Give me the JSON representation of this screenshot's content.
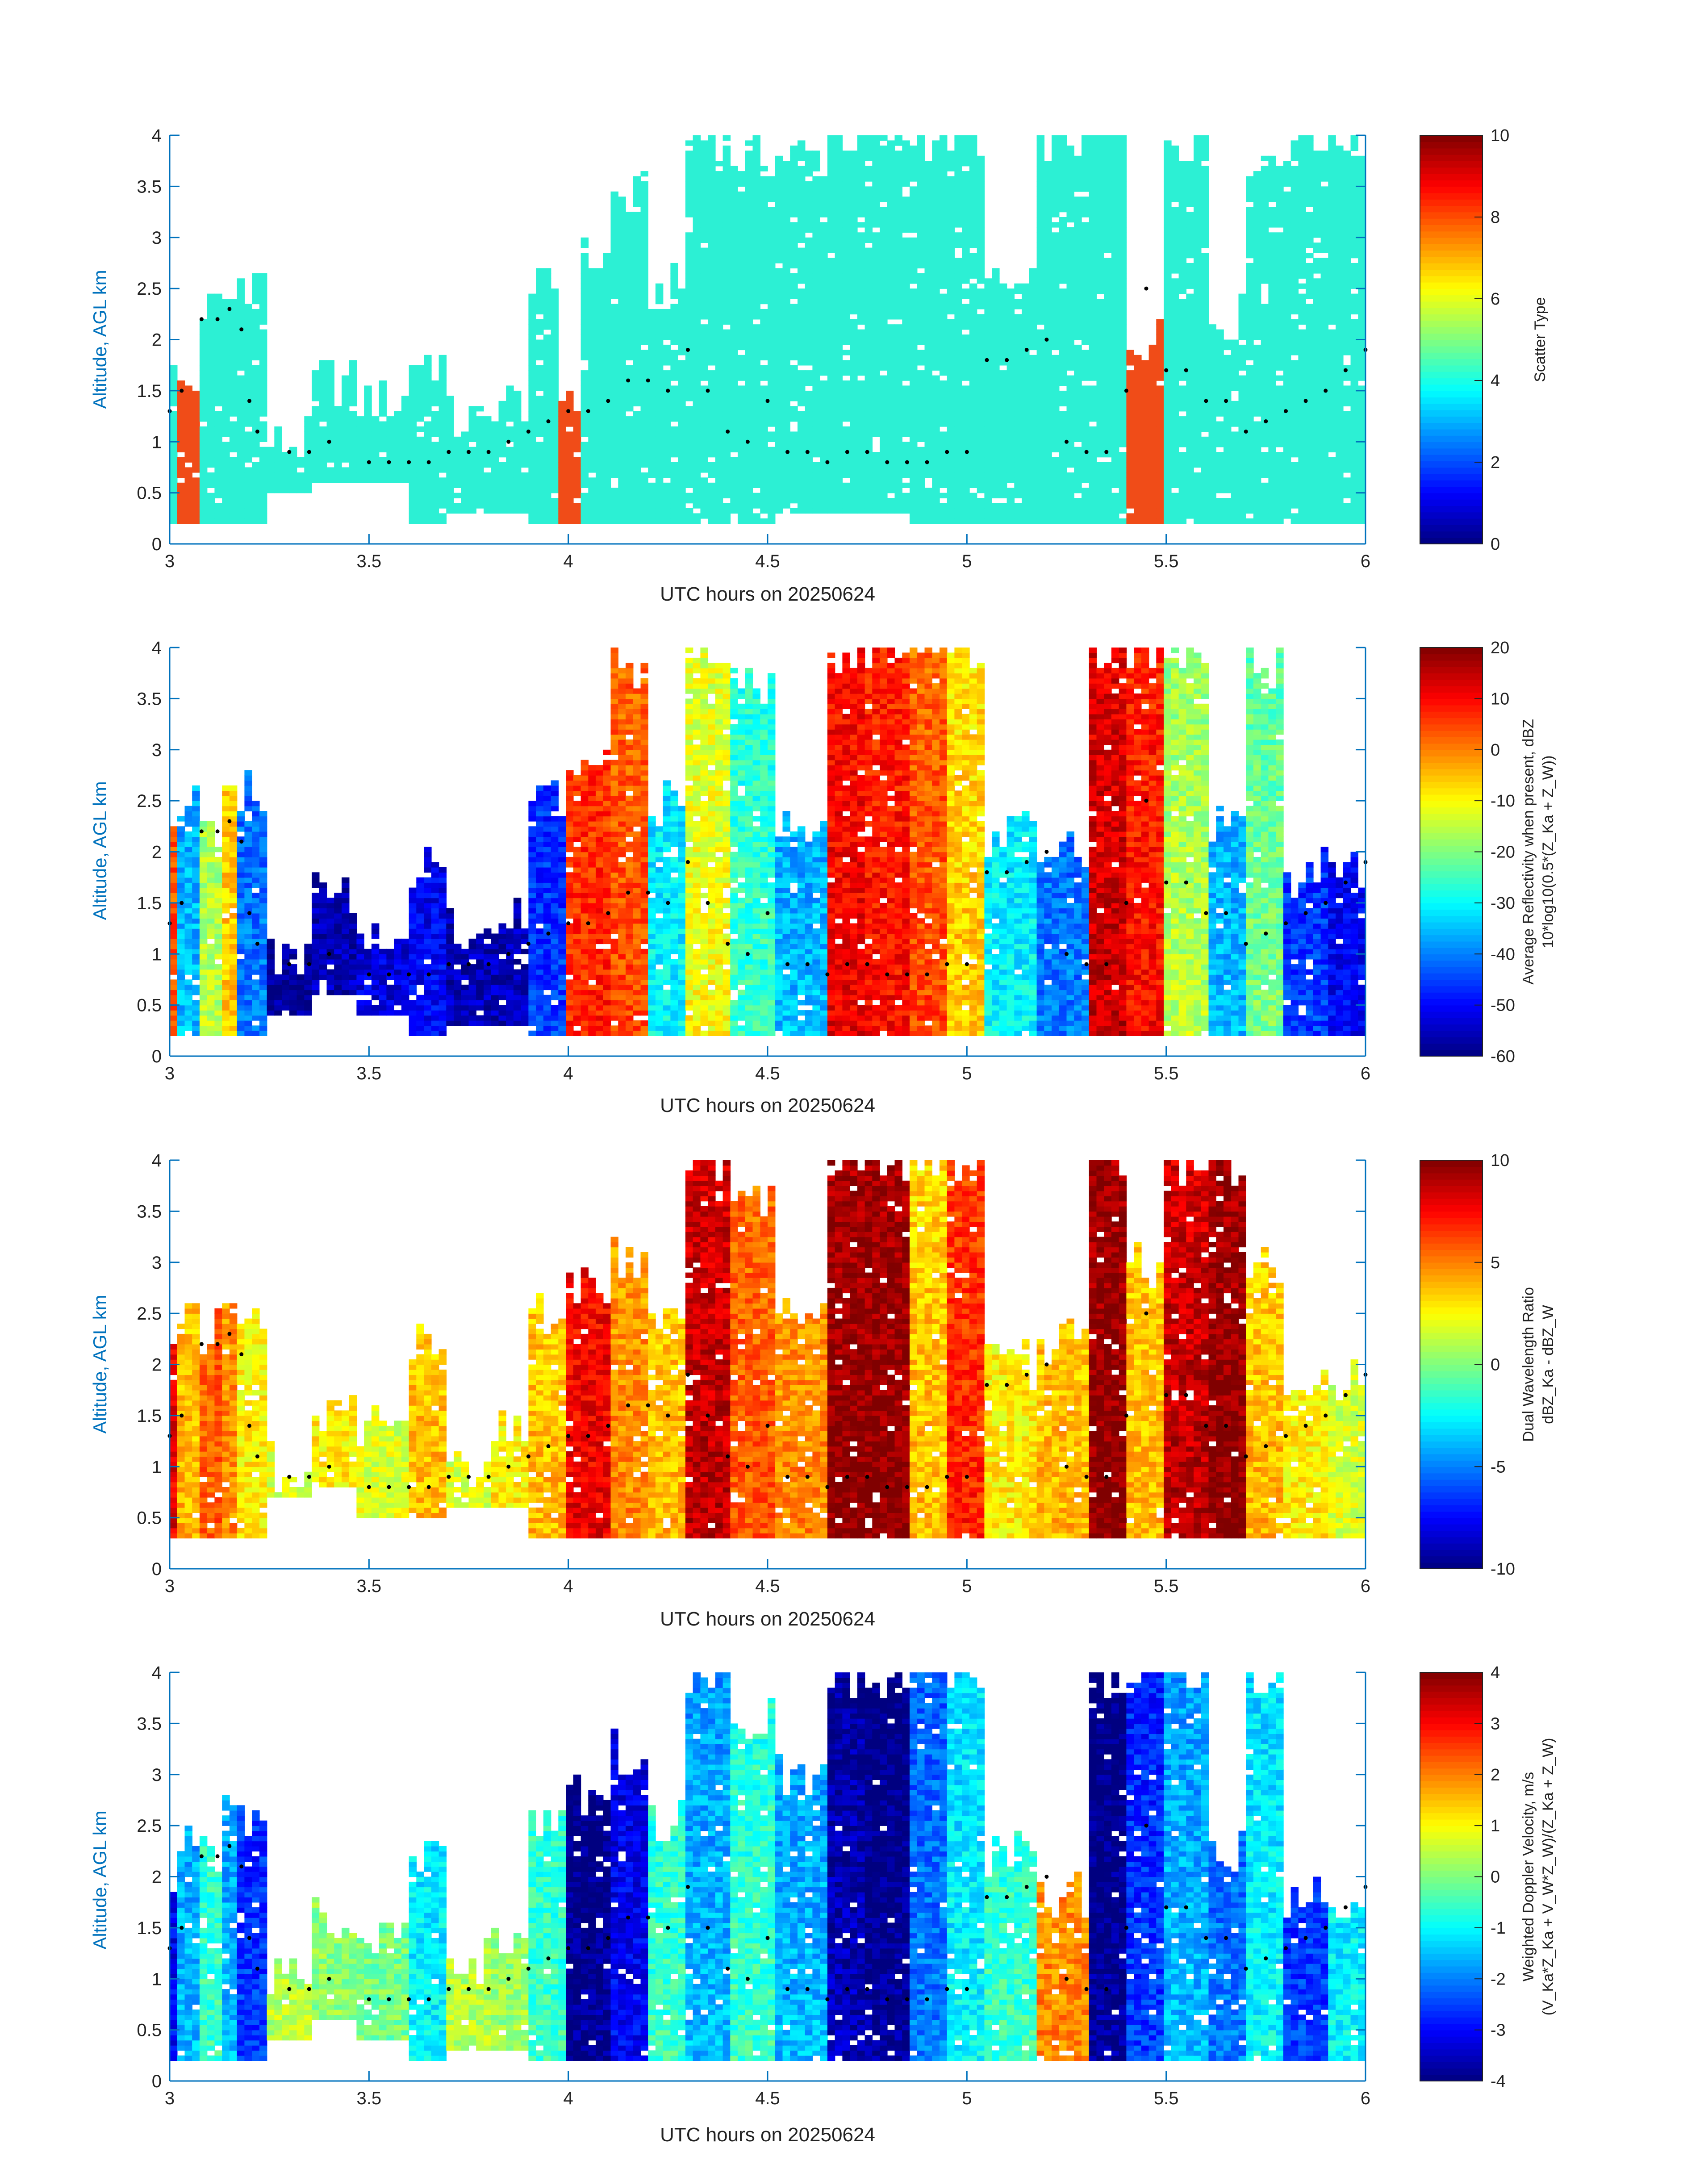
{
  "x_axis_label": "UTC hours on 20250624",
  "y_axis_label": "Altitude, AGL km",
  "x_ticks": [
    "3",
    "3.5",
    "4",
    "4.5",
    "5",
    "5.5",
    "6"
  ],
  "y_ticks": [
    "0",
    "0.5",
    "1",
    "1.5",
    "2",
    "2.5",
    "3",
    "3.5",
    "4"
  ],
  "colors": {
    "axis": "#0072bd",
    "text": "#222222",
    "scatter_main": "#2cf0d4",
    "scatter_alt": "#f04c18",
    "marker": "#000000"
  },
  "panels": [
    {
      "colorbar_label_line1": "",
      "colorbar_label_line2": "Scatter Type",
      "colorbar_ticks": [
        "0",
        "2",
        "4",
        "6",
        "8",
        "10"
      ]
    },
    {
      "colorbar_label_line1": "Average Reflectivity when present, dBZ",
      "colorbar_label_line2": "10*log10(0.5*(Z_Ka + Z_W))",
      "colorbar_ticks": [
        "-60",
        "-50",
        "-40",
        "-30",
        "-20",
        "-10",
        "0",
        "10",
        "20"
      ]
    },
    {
      "colorbar_label_line1": "Dual Wavelength Ratio",
      "colorbar_label_line2": "dBZ_Ka - dBZ_W",
      "colorbar_ticks": [
        "-10",
        "-5",
        "0",
        "5",
        "10"
      ]
    },
    {
      "colorbar_label_line1": "Weighted Doppler Velocity, m/s",
      "colorbar_label_line2": "(V_Ka*Z_Ka + V_W*Z_W)/(Z_Ka + Z_W)",
      "colorbar_ticks": [
        "-4",
        "-3",
        "-2",
        "-1",
        "0",
        "1",
        "2",
        "3",
        "4"
      ]
    }
  ],
  "chart_data": [
    {
      "type": "heatmap",
      "xlabel": "UTC hours on 20250624",
      "ylabel": "Altitude, AGL km",
      "xlim": [
        3,
        6
      ],
      "ylim": [
        0,
        4
      ],
      "colorbar": {
        "label": "Scatter Type",
        "range": [
          0,
          10
        ],
        "ticks": [
          0,
          2,
          4,
          6,
          8,
          10
        ],
        "colormap": "jet"
      },
      "dominant_values": [
        4,
        9
      ],
      "columns": [
        {
          "x": 3.0,
          "ybot": 0.2,
          "ytop": 1.9,
          "v": 4
        },
        {
          "x": 3.05,
          "ybot": 0.2,
          "ytop": 1.5,
          "v": 9
        },
        {
          "x": 3.1,
          "ybot": 0.2,
          "ytop": 2.3,
          "v": 4
        },
        {
          "x": 3.15,
          "ybot": 0.2,
          "ytop": 2.4,
          "v": 4
        },
        {
          "x": 3.2,
          "ybot": 0.2,
          "ytop": 2.6,
          "v": 4
        },
        {
          "x": 3.3,
          "ybot": 0.5,
          "ytop": 1.0,
          "v": 4
        },
        {
          "x": 3.4,
          "ybot": 0.6,
          "ytop": 1.6,
          "v": 4
        },
        {
          "x": 3.55,
          "ybot": 0.6,
          "ytop": 1.4,
          "v": 4
        },
        {
          "x": 3.65,
          "ybot": 0.2,
          "ytop": 1.8,
          "v": 4
        },
        {
          "x": 3.75,
          "ybot": 0.3,
          "ytop": 1.2,
          "v": 4
        },
        {
          "x": 3.85,
          "ybot": 0.3,
          "ytop": 1.4,
          "v": 4
        },
        {
          "x": 3.95,
          "ybot": 0.2,
          "ytop": 2.5,
          "v": 4
        },
        {
          "x": 4.0,
          "ybot": 0.2,
          "ytop": 1.5,
          "v": 9
        },
        {
          "x": 4.05,
          "ybot": 0.2,
          "ytop": 2.8,
          "v": 4
        },
        {
          "x": 4.15,
          "ybot": 0.2,
          "ytop": 3.4,
          "v": 4
        },
        {
          "x": 4.25,
          "ybot": 0.2,
          "ytop": 2.5,
          "v": 4
        },
        {
          "x": 4.35,
          "ybot": 0.2,
          "ytop": 4.0,
          "v": 4
        },
        {
          "x": 4.45,
          "ybot": 0.2,
          "ytop": 3.8,
          "v": 4
        },
        {
          "x": 4.6,
          "ybot": 0.3,
          "ytop": 3.8,
          "v": 4
        },
        {
          "x": 4.7,
          "ybot": 0.3,
          "ytop": 4.0,
          "v": 4
        },
        {
          "x": 4.8,
          "ybot": 0.3,
          "ytop": 4.0,
          "v": 4
        },
        {
          "x": 4.9,
          "ybot": 0.2,
          "ytop": 4.0,
          "v": 4
        },
        {
          "x": 5.0,
          "ybot": 0.2,
          "ytop": 4.0,
          "v": 4
        },
        {
          "x": 5.1,
          "ybot": 0.2,
          "ytop": 2.5,
          "v": 4
        },
        {
          "x": 5.25,
          "ybot": 0.2,
          "ytop": 4.0,
          "v": 4
        },
        {
          "x": 5.35,
          "ybot": 0.2,
          "ytop": 4.0,
          "v": 4
        },
        {
          "x": 5.45,
          "ybot": 0.2,
          "ytop": 2.0,
          "v": 9
        },
        {
          "x": 5.55,
          "ybot": 0.2,
          "ytop": 4.0,
          "v": 4
        },
        {
          "x": 5.65,
          "ybot": 0.2,
          "ytop": 2.2,
          "v": 4
        },
        {
          "x": 5.75,
          "ybot": 0.2,
          "ytop": 3.8,
          "v": 4
        },
        {
          "x": 5.85,
          "ybot": 0.2,
          "ytop": 4.0,
          "v": 4
        },
        {
          "x": 5.95,
          "ybot": 0.2,
          "ytop": 4.0,
          "v": 4
        }
      ]
    },
    {
      "type": "heatmap",
      "xlabel": "UTC hours on 20250624",
      "ylabel": "Altitude, AGL km",
      "xlim": [
        3,
        6
      ],
      "ylim": [
        0,
        4
      ],
      "colorbar": {
        "label": "Average Reflectivity when present, dBZ  10*log10(0.5*(Z_Ka + Z_W))",
        "range": [
          -60,
          20
        ],
        "ticks": [
          -60,
          -50,
          -40,
          -30,
          -20,
          -10,
          0,
          10,
          20
        ],
        "colormap": "jet"
      },
      "columns": [
        {
          "x": 3.0,
          "ybot": 0.2,
          "ytop": 2.0,
          "v": 5
        },
        {
          "x": 3.05,
          "ybot": 0.2,
          "ytop": 2.4,
          "v": -35
        },
        {
          "x": 3.1,
          "ybot": 0.2,
          "ytop": 2.2,
          "v": -15
        },
        {
          "x": 3.15,
          "ybot": 0.2,
          "ytop": 2.6,
          "v": -5
        },
        {
          "x": 3.2,
          "ybot": 0.2,
          "ytop": 2.6,
          "v": -40
        },
        {
          "x": 3.3,
          "ybot": 0.4,
          "ytop": 1.0,
          "v": -58
        },
        {
          "x": 3.4,
          "ybot": 0.6,
          "ytop": 1.6,
          "v": -55
        },
        {
          "x": 3.55,
          "ybot": 0.4,
          "ytop": 1.3,
          "v": -52
        },
        {
          "x": 3.65,
          "ybot": 0.2,
          "ytop": 1.8,
          "v": -50
        },
        {
          "x": 3.75,
          "ybot": 0.3,
          "ytop": 1.2,
          "v": -55
        },
        {
          "x": 3.85,
          "ybot": 0.3,
          "ytop": 1.4,
          "v": -55
        },
        {
          "x": 3.95,
          "ybot": 0.2,
          "ytop": 2.5,
          "v": -45
        },
        {
          "x": 4.05,
          "ybot": 0.2,
          "ytop": 2.8,
          "v": 8
        },
        {
          "x": 4.15,
          "ybot": 0.2,
          "ytop": 3.8,
          "v": 5
        },
        {
          "x": 4.25,
          "ybot": 0.2,
          "ytop": 2.5,
          "v": -30
        },
        {
          "x": 4.35,
          "ybot": 0.2,
          "ytop": 4.0,
          "v": -10
        },
        {
          "x": 4.45,
          "ybot": 0.2,
          "ytop": 3.6,
          "v": -25
        },
        {
          "x": 4.6,
          "ybot": 0.2,
          "ytop": 2.2,
          "v": -35
        },
        {
          "x": 4.7,
          "ybot": 0.2,
          "ytop": 4.0,
          "v": 12
        },
        {
          "x": 4.8,
          "ybot": 0.2,
          "ytop": 4.0,
          "v": 10
        },
        {
          "x": 4.9,
          "ybot": 0.2,
          "ytop": 4.0,
          "v": 5
        },
        {
          "x": 5.0,
          "ybot": 0.2,
          "ytop": 4.0,
          "v": -5
        },
        {
          "x": 5.1,
          "ybot": 0.2,
          "ytop": 2.2,
          "v": -30
        },
        {
          "x": 5.25,
          "ybot": 0.2,
          "ytop": 2.0,
          "v": -40
        },
        {
          "x": 5.35,
          "ybot": 0.2,
          "ytop": 4.0,
          "v": 15
        },
        {
          "x": 5.45,
          "ybot": 0.2,
          "ytop": 4.0,
          "v": 10
        },
        {
          "x": 5.55,
          "ybot": 0.2,
          "ytop": 4.0,
          "v": -15
        },
        {
          "x": 5.65,
          "ybot": 0.2,
          "ytop": 2.2,
          "v": -35
        },
        {
          "x": 5.75,
          "ybot": 0.2,
          "ytop": 3.8,
          "v": -20
        },
        {
          "x": 5.85,
          "ybot": 0.2,
          "ytop": 1.8,
          "v": -45
        },
        {
          "x": 5.95,
          "ybot": 0.2,
          "ytop": 1.8,
          "v": -50
        }
      ]
    },
    {
      "type": "heatmap",
      "xlabel": "UTC hours on 20250624",
      "ylabel": "Altitude, AGL km",
      "xlim": [
        3,
        6
      ],
      "ylim": [
        0,
        4
      ],
      "colorbar": {
        "label": "Dual Wavelength Ratio  dBZ_Ka - dBZ_W",
        "range": [
          -10,
          10
        ],
        "ticks": [
          -10,
          -5,
          0,
          5,
          10
        ],
        "colormap": "jet"
      },
      "columns": [
        {
          "x": 3.0,
          "ybot": 0.3,
          "ytop": 2.0,
          "v": 8
        },
        {
          "x": 3.05,
          "ybot": 0.3,
          "ytop": 2.4,
          "v": 4
        },
        {
          "x": 3.1,
          "ybot": 0.3,
          "ytop": 2.3,
          "v": 6
        },
        {
          "x": 3.15,
          "ybot": 0.3,
          "ytop": 2.6,
          "v": 5
        },
        {
          "x": 3.2,
          "ybot": 0.3,
          "ytop": 2.5,
          "v": 3
        },
        {
          "x": 3.3,
          "ybot": 0.7,
          "ytop": 1.0,
          "v": 2
        },
        {
          "x": 3.4,
          "ybot": 0.8,
          "ytop": 1.6,
          "v": 3
        },
        {
          "x": 3.55,
          "ybot": 0.5,
          "ytop": 1.4,
          "v": 2
        },
        {
          "x": 3.65,
          "ybot": 0.5,
          "ytop": 2.2,
          "v": 4
        },
        {
          "x": 3.75,
          "ybot": 0.6,
          "ytop": 1.0,
          "v": 2
        },
        {
          "x": 3.85,
          "ybot": 0.6,
          "ytop": 1.4,
          "v": 3
        },
        {
          "x": 3.95,
          "ybot": 0.3,
          "ytop": 2.5,
          "v": 4
        },
        {
          "x": 4.05,
          "ybot": 0.3,
          "ytop": 2.8,
          "v": 8
        },
        {
          "x": 4.15,
          "ybot": 0.3,
          "ytop": 3.0,
          "v": 5
        },
        {
          "x": 4.25,
          "ybot": 0.3,
          "ytop": 2.5,
          "v": 4
        },
        {
          "x": 4.35,
          "ybot": 0.3,
          "ytop": 4.0,
          "v": 9
        },
        {
          "x": 4.45,
          "ybot": 0.3,
          "ytop": 3.6,
          "v": 6
        },
        {
          "x": 4.6,
          "ybot": 0.3,
          "ytop": 2.6,
          "v": 5
        },
        {
          "x": 4.7,
          "ybot": 0.3,
          "ytop": 4.0,
          "v": 10
        },
        {
          "x": 4.8,
          "ybot": 0.3,
          "ytop": 4.0,
          "v": 10
        },
        {
          "x": 4.9,
          "ybot": 0.3,
          "ytop": 4.0,
          "v": 4
        },
        {
          "x": 5.0,
          "ybot": 0.3,
          "ytop": 4.0,
          "v": 7
        },
        {
          "x": 5.1,
          "ybot": 0.3,
          "ytop": 2.0,
          "v": 3
        },
        {
          "x": 5.25,
          "ybot": 0.3,
          "ytop": 2.2,
          "v": 4
        },
        {
          "x": 5.35,
          "ybot": 0.3,
          "ytop": 4.0,
          "v": 10
        },
        {
          "x": 5.45,
          "ybot": 0.3,
          "ytop": 3.0,
          "v": 4
        },
        {
          "x": 5.55,
          "ybot": 0.3,
          "ytop": 4.0,
          "v": 9
        },
        {
          "x": 5.65,
          "ybot": 0.3,
          "ytop": 4.0,
          "v": 10
        },
        {
          "x": 5.75,
          "ybot": 0.3,
          "ytop": 3.0,
          "v": 4
        },
        {
          "x": 5.85,
          "ybot": 0.3,
          "ytop": 1.8,
          "v": 3
        },
        {
          "x": 5.95,
          "ybot": 0.3,
          "ytop": 1.8,
          "v": 2
        }
      ]
    },
    {
      "type": "heatmap",
      "xlabel": "UTC hours on 20250624",
      "ylabel": "Altitude, AGL km",
      "xlim": [
        3,
        6
      ],
      "ylim": [
        0,
        4
      ],
      "colorbar": {
        "label": "Weighted Doppler Velocity, m/s  (V_Ka*Z_Ka + V_W*Z_W)/(Z_Ka + Z_W)",
        "range": [
          -4,
          4
        ],
        "ticks": [
          -4,
          -3,
          -2,
          -1,
          0,
          1,
          2,
          3,
          4
        ],
        "colormap": "jet"
      },
      "columns": [
        {
          "x": 3.0,
          "ybot": 0.2,
          "ytop": 2.0,
          "v": -3
        },
        {
          "x": 3.05,
          "ybot": 0.2,
          "ytop": 2.4,
          "v": -1.5
        },
        {
          "x": 3.1,
          "ybot": 0.2,
          "ytop": 2.3,
          "v": -0.5
        },
        {
          "x": 3.15,
          "ybot": 0.2,
          "ytop": 2.6,
          "v": -1.5
        },
        {
          "x": 3.2,
          "ybot": 0.2,
          "ytop": 2.6,
          "v": -2.5
        },
        {
          "x": 3.3,
          "ybot": 0.4,
          "ytop": 1.0,
          "v": 0.5
        },
        {
          "x": 3.4,
          "ybot": 0.6,
          "ytop": 1.6,
          "v": 0.2
        },
        {
          "x": 3.55,
          "ybot": 0.4,
          "ytop": 1.4,
          "v": 0
        },
        {
          "x": 3.65,
          "ybot": 0.2,
          "ytop": 2.2,
          "v": -1
        },
        {
          "x": 3.75,
          "ybot": 0.3,
          "ytop": 1.2,
          "v": 0.5
        },
        {
          "x": 3.85,
          "ybot": 0.3,
          "ytop": 1.4,
          "v": 0.3
        },
        {
          "x": 3.95,
          "ybot": 0.2,
          "ytop": 2.5,
          "v": -0.5
        },
        {
          "x": 4.05,
          "ybot": 0.2,
          "ytop": 2.8,
          "v": -3.8
        },
        {
          "x": 4.15,
          "ybot": 0.2,
          "ytop": 3.2,
          "v": -3
        },
        {
          "x": 4.25,
          "ybot": 0.2,
          "ytop": 2.5,
          "v": -0.5
        },
        {
          "x": 4.35,
          "ybot": 0.2,
          "ytop": 4.0,
          "v": -1.5
        },
        {
          "x": 4.45,
          "ybot": 0.2,
          "ytop": 3.6,
          "v": -0.5
        },
        {
          "x": 4.6,
          "ybot": 0.2,
          "ytop": 3.0,
          "v": -1.5
        },
        {
          "x": 4.7,
          "ybot": 0.2,
          "ytop": 4.0,
          "v": -3.5
        },
        {
          "x": 4.8,
          "ybot": 0.2,
          "ytop": 4.0,
          "v": -3.8
        },
        {
          "x": 4.9,
          "ybot": 0.2,
          "ytop": 4.0,
          "v": -2
        },
        {
          "x": 5.0,
          "ybot": 0.2,
          "ytop": 4.0,
          "v": -1
        },
        {
          "x": 5.1,
          "ybot": 0.2,
          "ytop": 2.2,
          "v": -0.5
        },
        {
          "x": 5.25,
          "ybot": 0.2,
          "ytop": 1.8,
          "v": 2
        },
        {
          "x": 5.35,
          "ybot": 0.2,
          "ytop": 4.0,
          "v": -3.8
        },
        {
          "x": 5.45,
          "ybot": 0.2,
          "ytop": 4.0,
          "v": -2.5
        },
        {
          "x": 5.55,
          "ybot": 0.2,
          "ytop": 4.0,
          "v": -1.5
        },
        {
          "x": 5.65,
          "ybot": 0.2,
          "ytop": 2.2,
          "v": -2
        },
        {
          "x": 5.75,
          "ybot": 0.2,
          "ytop": 3.8,
          "v": -1
        },
        {
          "x": 5.85,
          "ybot": 0.2,
          "ytop": 1.8,
          "v": -2.5
        },
        {
          "x": 5.95,
          "ybot": 0.2,
          "ytop": 1.8,
          "v": -1
        }
      ]
    }
  ],
  "markers": [
    [
      3.0,
      1.3
    ],
    [
      3.03,
      1.5
    ],
    [
      3.08,
      2.2
    ],
    [
      3.12,
      2.2
    ],
    [
      3.15,
      2.3
    ],
    [
      3.18,
      2.1
    ],
    [
      3.2,
      1.4
    ],
    [
      3.22,
      1.1
    ],
    [
      3.3,
      0.9
    ],
    [
      3.35,
      0.9
    ],
    [
      3.4,
      1.0
    ],
    [
      3.5,
      0.8
    ],
    [
      3.55,
      0.8
    ],
    [
      3.6,
      0.8
    ],
    [
      3.65,
      0.8
    ],
    [
      3.7,
      0.9
    ],
    [
      3.75,
      0.9
    ],
    [
      3.8,
      0.9
    ],
    [
      3.85,
      1.0
    ],
    [
      3.9,
      1.1
    ],
    [
      3.95,
      1.2
    ],
    [
      4.0,
      1.3
    ],
    [
      4.05,
      1.3
    ],
    [
      4.1,
      1.4
    ],
    [
      4.15,
      1.6
    ],
    [
      4.2,
      1.6
    ],
    [
      4.25,
      1.5
    ],
    [
      4.3,
      1.9
    ],
    [
      4.35,
      1.5
    ],
    [
      4.4,
      1.1
    ],
    [
      4.45,
      1.0
    ],
    [
      4.5,
      1.4
    ],
    [
      4.55,
      0.9
    ],
    [
      4.6,
      0.9
    ],
    [
      4.65,
      0.8
    ],
    [
      4.7,
      0.9
    ],
    [
      4.75,
      0.9
    ],
    [
      4.8,
      0.8
    ],
    [
      4.85,
      0.8
    ],
    [
      4.9,
      0.8
    ],
    [
      4.95,
      0.9
    ],
    [
      5.0,
      0.9
    ],
    [
      5.05,
      1.8
    ],
    [
      5.1,
      1.8
    ],
    [
      5.15,
      1.9
    ],
    [
      5.2,
      2.0
    ],
    [
      5.25,
      1.0
    ],
    [
      5.3,
      0.9
    ],
    [
      5.35,
      0.9
    ],
    [
      5.4,
      1.5
    ],
    [
      5.45,
      2.5
    ],
    [
      5.5,
      1.7
    ],
    [
      5.55,
      1.7
    ],
    [
      5.6,
      1.4
    ],
    [
      5.65,
      1.4
    ],
    [
      5.7,
      1.1
    ],
    [
      5.75,
      1.2
    ],
    [
      5.8,
      1.3
    ],
    [
      5.85,
      1.4
    ],
    [
      5.9,
      1.5
    ],
    [
      5.95,
      1.7
    ],
    [
      6.0,
      1.9
    ]
  ]
}
